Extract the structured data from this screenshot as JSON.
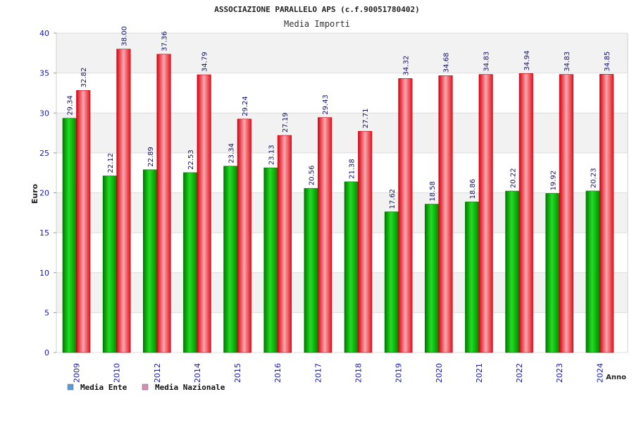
{
  "chart_data": {
    "type": "bar",
    "title": "ASSOCIAZIONE PARALLELO APS (c.f.90051780402)",
    "subtitle": "Media Importi",
    "xlabel": "Anno",
    "ylabel": "Euro",
    "ylim": [
      0,
      40
    ],
    "yticks": [
      0,
      5,
      10,
      15,
      20,
      25,
      30,
      35,
      40
    ],
    "grid": true,
    "legend_position": "bottom-left",
    "categories": [
      "2009",
      "2010",
      "2012",
      "2014",
      "2015",
      "2016",
      "2017",
      "2018",
      "2019",
      "2020",
      "2021",
      "2022",
      "2023",
      "2024"
    ],
    "series": [
      {
        "name": "Media Ente",
        "color": "#00aa00",
        "legend_color": "#5b9bd5",
        "values": [
          29.34,
          22.12,
          22.89,
          22.53,
          23.34,
          23.13,
          20.56,
          21.38,
          17.62,
          18.58,
          18.86,
          20.22,
          19.92,
          20.23
        ],
        "labels": [
          "29.34",
          "22.12",
          "22.89",
          "22.53",
          "23.34",
          "23.13",
          "20.56",
          "21.38",
          "17.62",
          "18.58",
          "18.86",
          "20.22",
          "19.92",
          "20.23"
        ]
      },
      {
        "name": "Media Nazionale",
        "color": "#ee1c25",
        "legend_color": "#d98cb3",
        "values": [
          32.82,
          38.0,
          37.36,
          34.79,
          29.24,
          27.19,
          29.43,
          27.71,
          34.32,
          34.68,
          34.83,
          34.94,
          34.83,
          34.85
        ],
        "labels": [
          "32.82",
          "38.00",
          "37.36",
          "34.79",
          "29.24",
          "27.19",
          "29.43",
          "27.71",
          "34.32",
          "34.68",
          "34.83",
          "34.94",
          "34.83",
          "34.85"
        ]
      }
    ]
  }
}
